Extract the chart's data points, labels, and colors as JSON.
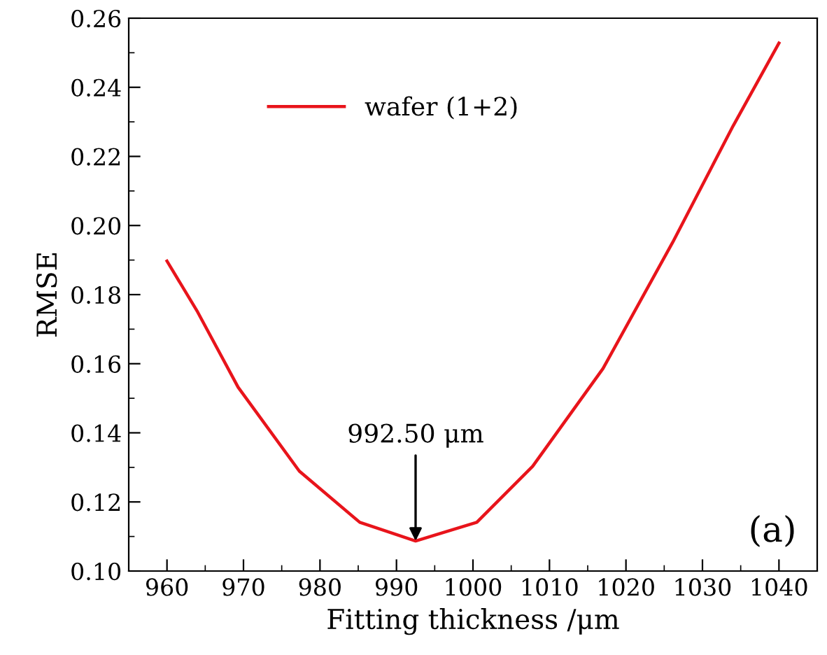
{
  "chart_data": {
    "type": "line",
    "xlabel": "Fitting thickness /μm",
    "ylabel": "RMSE",
    "series": [
      {
        "name": "wafer (1+2)",
        "color": "#e8141b",
        "x": [
          960,
          964,
          969.3,
          977.3,
          985.2,
          992.5,
          1000.5,
          1007.8,
          1017,
          1026.1,
          1034,
          1040
        ],
        "values": [
          0.1897,
          0.175,
          0.1532,
          0.1289,
          0.1141,
          0.1087,
          0.1141,
          0.1303,
          0.1586,
          0.1951,
          0.2288,
          0.2528
        ]
      }
    ],
    "annotations": [
      {
        "text": "992.50 μm",
        "x": 992.5,
        "y": 0.1087
      },
      "(a)"
    ],
    "xlim": [
      955,
      1045
    ],
    "ylim": [
      0.1,
      0.26
    ],
    "xticks": [
      960,
      970,
      980,
      990,
      1000,
      1010,
      1020,
      1030,
      1040
    ],
    "yticks": [
      {
        "value": 0.1,
        "label": "0.10"
      },
      {
        "value": 0.12,
        "label": "0.12"
      },
      {
        "value": 0.14,
        "label": "0.14"
      },
      {
        "value": 0.16,
        "label": "0.16"
      },
      {
        "value": 0.18,
        "label": "0.18"
      },
      {
        "value": 0.2,
        "label": "0.20"
      },
      {
        "value": 0.22,
        "label": "0.22"
      },
      {
        "value": 0.24,
        "label": "0.24"
      },
      {
        "value": 0.26,
        "label": "0.26"
      }
    ],
    "grid": false,
    "legend": "top left",
    "marker": "none",
    "line_style": "solid"
  }
}
